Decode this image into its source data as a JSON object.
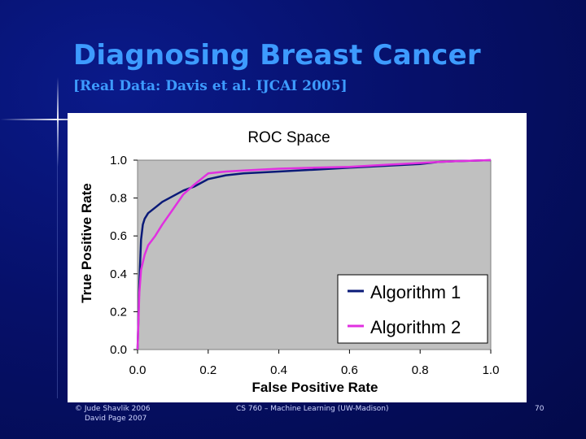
{
  "slide": {
    "title": "Diagnosing Breast Cancer",
    "subtitle": "[Real Data: Davis et al. IJCAI 2005]",
    "footer_left_1": "© Jude Shavlik 2006",
    "footer_left_2": "David Page 2007",
    "footer_center": "CS 760 – Machine Learning (UW-Madison)",
    "footer_right": "70"
  },
  "colors": {
    "title": "#3d9bff",
    "plot_background": "#c0c0c0",
    "algorithm_1": "#0a1a78",
    "algorithm_2": "#e030e0"
  },
  "chart_data": {
    "type": "line",
    "title": "ROC Space",
    "xlabel": "False Positive Rate",
    "ylabel": "True Positive Rate",
    "xlim": [
      0,
      1
    ],
    "ylim": [
      0,
      1
    ],
    "x_ticks": [
      "0.0",
      "0.2",
      "0.4",
      "0.6",
      "0.8",
      "1.0"
    ],
    "y_ticks": [
      "0.0",
      "0.2",
      "0.4",
      "0.6",
      "0.8",
      "1.0"
    ],
    "grid": false,
    "legend_position": "bottom-right",
    "series": [
      {
        "name": "Algorithm 1",
        "color": "#0a1a78",
        "x": [
          0.0,
          0.005,
          0.01,
          0.015,
          0.02,
          0.03,
          0.05,
          0.07,
          0.1,
          0.13,
          0.16,
          0.2,
          0.25,
          0.3,
          0.4,
          0.5,
          0.6,
          0.7,
          0.8,
          0.85,
          0.9,
          1.0
        ],
        "y": [
          0.0,
          0.35,
          0.58,
          0.66,
          0.69,
          0.72,
          0.75,
          0.78,
          0.81,
          0.84,
          0.86,
          0.9,
          0.92,
          0.93,
          0.94,
          0.95,
          0.96,
          0.97,
          0.98,
          0.99,
          0.995,
          1.0
        ]
      },
      {
        "name": "Algorithm 2",
        "color": "#e030e0",
        "x": [
          0.0,
          0.005,
          0.01,
          0.02,
          0.03,
          0.05,
          0.07,
          0.1,
          0.13,
          0.16,
          0.18,
          0.2,
          0.25,
          0.3,
          0.4,
          0.5,
          0.6,
          0.7,
          0.8,
          0.85,
          0.9,
          1.0
        ],
        "y": [
          0.0,
          0.3,
          0.42,
          0.5,
          0.55,
          0.6,
          0.66,
          0.74,
          0.82,
          0.87,
          0.9,
          0.93,
          0.94,
          0.945,
          0.955,
          0.96,
          0.965,
          0.975,
          0.985,
          0.99,
          0.995,
          1.0
        ]
      }
    ]
  }
}
